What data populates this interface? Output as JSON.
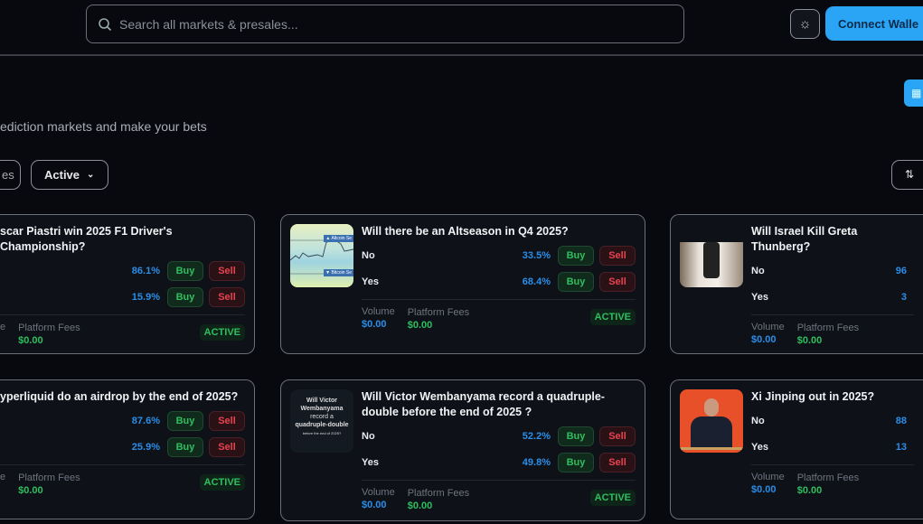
{
  "header": {
    "search_placeholder": "Search all markets & presales...",
    "connect_wallet": "Connect Walle"
  },
  "page": {
    "subtitle": "ediction markets and make your bets"
  },
  "filters": {
    "first_label": "es",
    "status_label": "Active"
  },
  "colors": {
    "accent": "#2aa4f4",
    "buy": "#2fbf5f",
    "sell": "#e8434f",
    "percent": "#2a8ee8"
  },
  "markets": [
    {
      "title": "scar Piastri win 2025 F1 Driver's Championship?",
      "options": [
        {
          "label": "",
          "pct": "86.1%"
        },
        {
          "label": "",
          "pct": "15.9%"
        }
      ],
      "volume_label": "e",
      "volume": "",
      "fees_label": "Platform Fees",
      "fees": "$0.00",
      "status": "ACTIVE",
      "buy": "Buy",
      "sell": "Sell"
    },
    {
      "title": "Will there be an Altseason in Q4 2025?",
      "options": [
        {
          "label": "No",
          "pct": "33.5%"
        },
        {
          "label": "Yes",
          "pct": "68.4%"
        }
      ],
      "volume_label": "Volume",
      "volume": "$0.00",
      "fees_label": "Platform Fees",
      "fees": "$0.00",
      "status": "ACTIVE",
      "buy": "Buy",
      "sell": "Sell",
      "thumb_text": [
        "▲ Altcoin Se",
        "▼ Bitcoin Se"
      ]
    },
    {
      "title": "Will Israel Kill Greta Thunberg?",
      "options": [
        {
          "label": "No",
          "pct": "96"
        },
        {
          "label": "Yes",
          "pct": "3"
        }
      ],
      "volume_label": "Volume",
      "volume": "$0.00",
      "fees_label": "Platform Fees",
      "fees": "$0.00"
    },
    {
      "title": "yperliquid do an airdrop by the end of 2025?",
      "options": [
        {
          "label": "",
          "pct": "87.6%"
        },
        {
          "label": "",
          "pct": "25.9%"
        }
      ],
      "volume_label": "e",
      "volume": "",
      "fees_label": "Platform Fees",
      "fees": "$0.00",
      "status": "ACTIVE",
      "buy": "Buy",
      "sell": "Sell"
    },
    {
      "title": "Will Victor Wembanyama record a quadruple-double before the end of 2025 ?",
      "options": [
        {
          "label": "No",
          "pct": "52.2%"
        },
        {
          "label": "Yes",
          "pct": "49.8%"
        }
      ],
      "volume_label": "Volume",
      "volume": "$0.00",
      "fees_label": "Platform Fees",
      "fees": "$0.00",
      "status": "ACTIVE",
      "buy": "Buy",
      "sell": "Sell",
      "thumb_text": [
        "Will Victor Wembanyama",
        "record a",
        "quadruple-double",
        "before the end of 2025?"
      ]
    },
    {
      "title": "Xi Jinping out in 2025?",
      "options": [
        {
          "label": "No",
          "pct": "88"
        },
        {
          "label": "Yes",
          "pct": "13"
        }
      ],
      "volume_label": "Volume",
      "volume": "$0.00",
      "fees_label": "Platform Fees",
      "fees": "$0.00"
    }
  ]
}
